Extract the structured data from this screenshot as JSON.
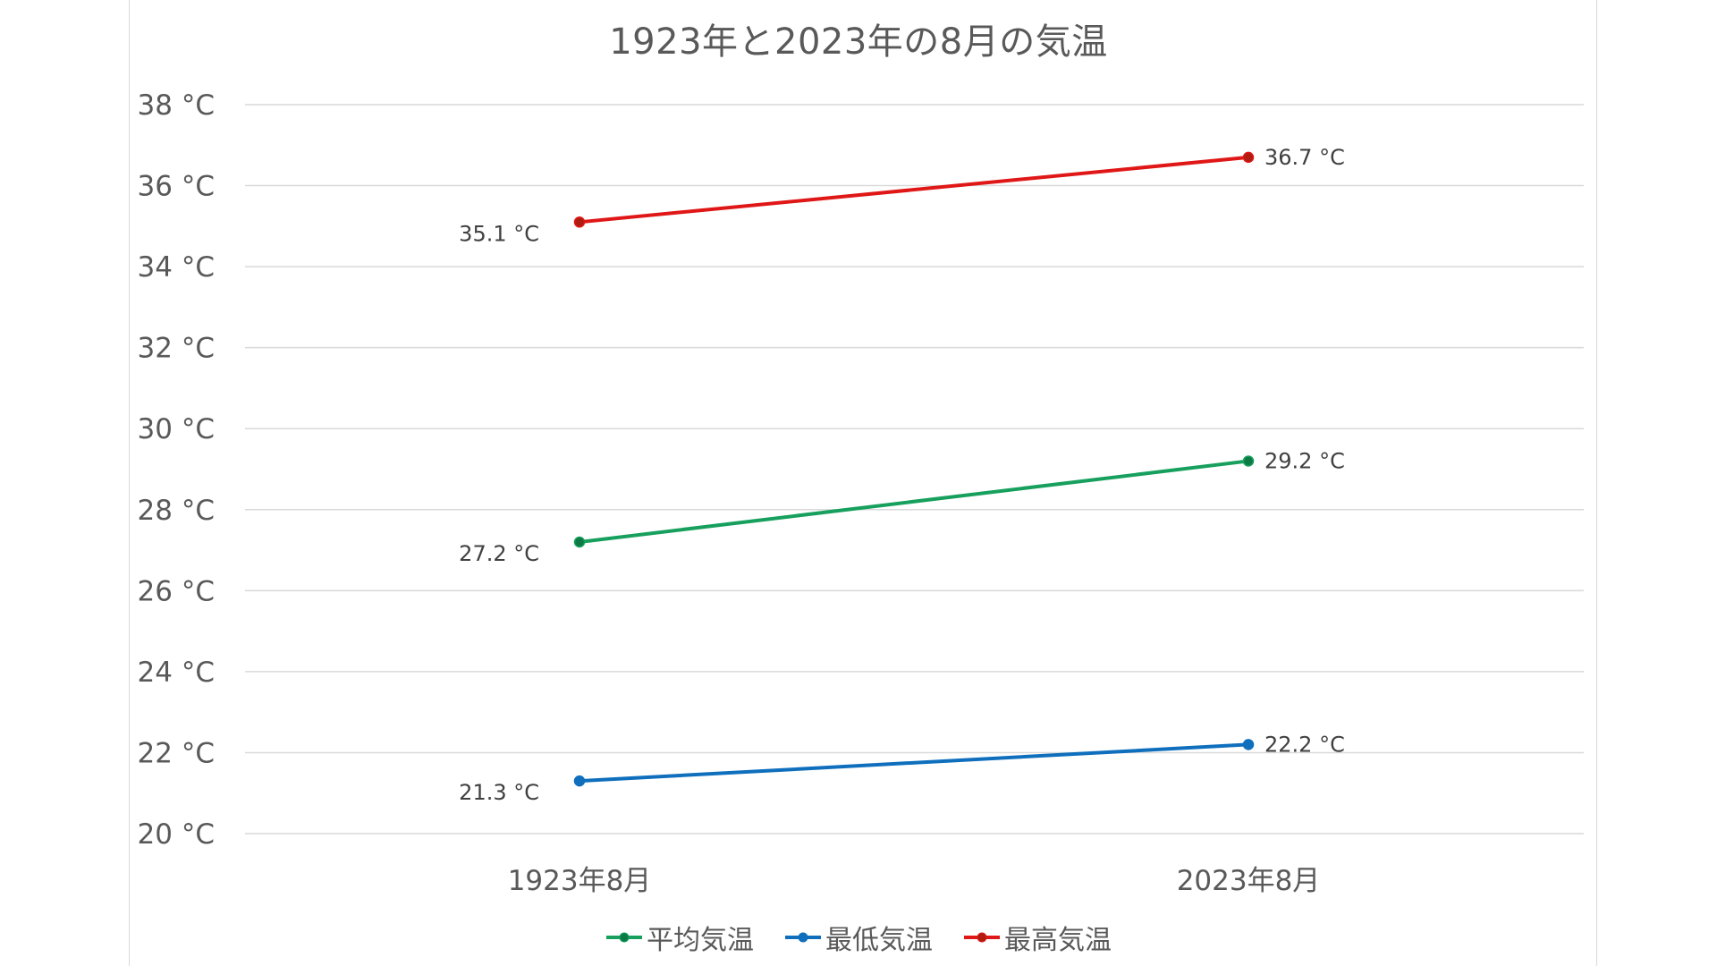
{
  "chart_data": {
    "type": "line",
    "title": "1923年と2023年の8月の気温",
    "categories": [
      "1923年8月",
      "2023年8月"
    ],
    "unit": "°C",
    "ylim": [
      20,
      38
    ],
    "ytick_step": 2,
    "y_ticks": [
      "38 °C",
      "36 °C",
      "34 °C",
      "32 °C",
      "30 °C",
      "28 °C",
      "26 °C",
      "24 °C",
      "22 °C",
      "20 °C"
    ],
    "grid": true,
    "legend_position": "bottom",
    "series": [
      {
        "name": "平均気温",
        "color": "#17a05d",
        "marker_fill": "#0b7a44",
        "values": [
          27.2,
          29.2
        ],
        "labels": [
          "27.2 °C",
          "29.2 °C"
        ]
      },
      {
        "name": "最低気温",
        "color": "#0f6fbd",
        "marker_fill": "#0f6fbd",
        "values": [
          21.3,
          22.2
        ],
        "labels": [
          "21.3 °C",
          "22.2 °C"
        ]
      },
      {
        "name": "最高気温",
        "color": "#e01717",
        "marker_fill": "#b01c10",
        "values": [
          35.1,
          36.7
        ],
        "labels": [
          "35.1 °C",
          "36.7 °C"
        ]
      }
    ]
  }
}
